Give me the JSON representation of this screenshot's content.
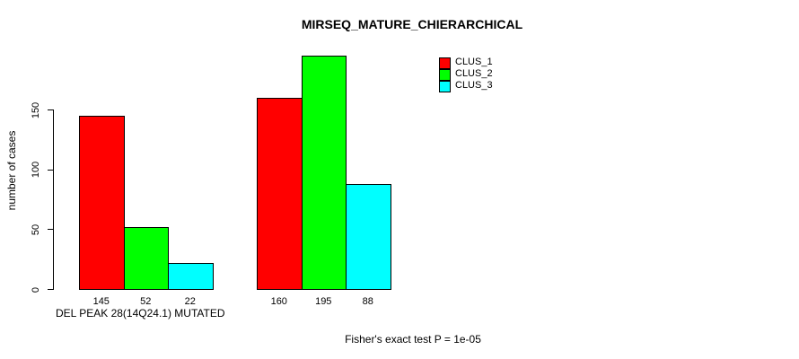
{
  "title": "MIRSEQ_MATURE_CHIERARCHICAL",
  "chart_data": {
    "type": "bar",
    "title": "MIRSEQ_MATURE_CHIERARCHICAL",
    "xlabel": "DEL PEAK 28(14Q24.1) MUTATED",
    "ylabel": "number of cases",
    "series": [
      "CLUS_1",
      "CLUS_2",
      "CLUS_3"
    ],
    "colors": [
      "#ff0000",
      "#00ff00",
      "#00ffff"
    ],
    "groups": [
      {
        "label": "DEL PEAK 28(14Q24.1) MUTATED",
        "values": [
          145,
          52,
          22
        ]
      },
      {
        "label": "",
        "values": [
          160,
          195,
          88
        ]
      }
    ],
    "bar_value_labels": [
      [
        "145",
        "52",
        "22"
      ],
      [
        "160",
        "195",
        "88"
      ]
    ],
    "yticks": [
      0,
      50,
      100,
      150
    ],
    "ylim": [
      0,
      195
    ],
    "grid": false,
    "legend_position": "top-right",
    "annotation": "Fisher's exact test P = 1e-05"
  },
  "legend": {
    "items": [
      {
        "label": "CLUS_1",
        "color": "#ff0000"
      },
      {
        "label": "CLUS_2",
        "color": "#00ff00"
      },
      {
        "label": "CLUS_3",
        "color": "#00ffff"
      }
    ]
  },
  "colors": {
    "axis": "#000000",
    "text": "#000000",
    "background": "#ffffff"
  }
}
